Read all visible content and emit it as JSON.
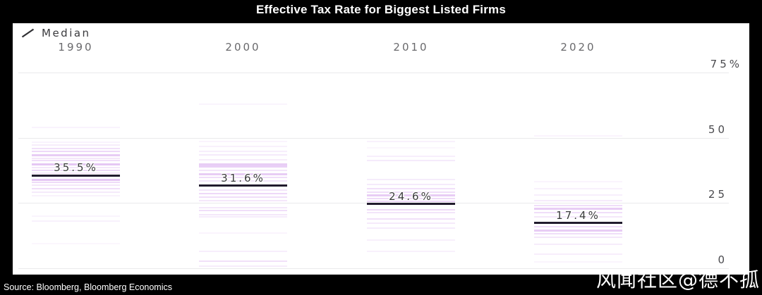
{
  "title": "Effective Tax Rate for Biggest Listed Firms",
  "source": "Source: Bloomberg, Bloomberg Economics",
  "watermark": "风闻社区@德不孤",
  "legend": {
    "label": "Median",
    "marker": "diagonal-line"
  },
  "colors": {
    "frame_background": "#000000",
    "panel_background": "#ffffff",
    "strip_line": "#c989e8",
    "median_line": "#211b2d",
    "gridline": "#eaeaec",
    "title_text": "#ffffff",
    "year_label": "#69696c",
    "tick_label": "#4a4a4e",
    "median_label": "#3a3a3c",
    "source_text": "#ffffff",
    "watermark_text": "#ffffff"
  },
  "chart_data": {
    "type": "strip-distribution",
    "title": "Effective Tax Rate for Biggest Listed Firms",
    "unit": "percent",
    "legend_position": "top-left",
    "y_axis": {
      "side": "right",
      "range": [
        0,
        77
      ],
      "ticks": [
        {
          "value": 75,
          "label": "75%"
        },
        {
          "value": 50,
          "label": "50"
        },
        {
          "value": 25,
          "label": "25"
        },
        {
          "value": 0,
          "label": "0"
        }
      ]
    },
    "groups": [
      {
        "year": "1990",
        "median": 35.5,
        "median_label": "35.5%",
        "points": [
          {
            "v": 54.0,
            "w": 0.1
          },
          {
            "v": 48.4,
            "w": 0.1
          },
          {
            "v": 47.3,
            "w": 0.16
          },
          {
            "v": 46.0,
            "w": 0.26
          },
          {
            "v": 44.7,
            "w": 0.32
          },
          {
            "v": 43.4,
            "w": 0.42
          },
          {
            "v": 42.2,
            "w": 0.2
          },
          {
            "v": 41.2,
            "w": 0.28
          },
          {
            "v": 39.9,
            "w": 0.48
          },
          {
            "v": 38.7,
            "w": 0.2
          },
          {
            "v": 37.4,
            "w": 0.33
          },
          {
            "v": 36.5,
            "w": 0.22
          },
          {
            "v": 34.0,
            "w": 0.48
          },
          {
            "v": 32.8,
            "w": 0.3
          },
          {
            "v": 31.9,
            "w": 0.2
          },
          {
            "v": 30.5,
            "w": 0.28
          },
          {
            "v": 29.2,
            "w": 0.18
          },
          {
            "v": 27.9,
            "w": 0.11
          },
          {
            "v": 20.1,
            "w": 0.09
          },
          {
            "v": 18.0,
            "w": 0.12
          },
          {
            "v": 9.5,
            "w": 0.08
          }
        ]
      },
      {
        "year": "2000",
        "median": 31.6,
        "median_label": "31.6%",
        "points": [
          {
            "v": 62.8,
            "w": 0.09
          },
          {
            "v": 48.5,
            "w": 0.09
          },
          {
            "v": 46.6,
            "w": 0.12
          },
          {
            "v": 44.8,
            "w": 0.14
          },
          {
            "v": 43.4,
            "w": 0.18
          },
          {
            "v": 41.5,
            "w": 0.16
          },
          {
            "v": 39.9,
            "w": 0.42
          },
          {
            "v": 38.9,
            "w": 0.4
          },
          {
            "v": 37.5,
            "w": 0.22
          },
          {
            "v": 35.9,
            "w": 0.42
          },
          {
            "v": 34.8,
            "w": 0.28
          },
          {
            "v": 33.5,
            "w": 0.22
          },
          {
            "v": 30.0,
            "w": 0.22
          },
          {
            "v": 28.7,
            "w": 0.32
          },
          {
            "v": 27.3,
            "w": 0.28
          },
          {
            "v": 26.0,
            "w": 0.2
          },
          {
            "v": 23.3,
            "w": 0.2
          },
          {
            "v": 22.0,
            "w": 0.28
          },
          {
            "v": 20.6,
            "w": 0.2
          },
          {
            "v": 19.8,
            "w": 0.16
          },
          {
            "v": 13.4,
            "w": 0.09
          },
          {
            "v": 6.4,
            "w": 0.14
          },
          {
            "v": 2.7,
            "w": 0.26
          },
          {
            "v": 0.8,
            "w": 0.16
          }
        ]
      },
      {
        "year": "2010",
        "median": 24.6,
        "median_label": "24.6%",
        "points": [
          {
            "v": 48.6,
            "w": 0.12
          },
          {
            "v": 46.1,
            "w": 0.08
          },
          {
            "v": 42.9,
            "w": 0.14
          },
          {
            "v": 41.3,
            "w": 0.18
          },
          {
            "v": 34.0,
            "w": 0.16
          },
          {
            "v": 32.2,
            "w": 0.18
          },
          {
            "v": 30.5,
            "w": 0.26
          },
          {
            "v": 29.2,
            "w": 0.28
          },
          {
            "v": 27.9,
            "w": 0.42
          },
          {
            "v": 26.8,
            "w": 0.3
          },
          {
            "v": 25.7,
            "w": 0.36
          },
          {
            "v": 22.5,
            "w": 0.3
          },
          {
            "v": 21.2,
            "w": 0.22
          },
          {
            "v": 18.8,
            "w": 0.26
          },
          {
            "v": 17.2,
            "w": 0.18
          },
          {
            "v": 15.3,
            "w": 0.16
          },
          {
            "v": 10.7,
            "w": 0.13
          },
          {
            "v": 6.4,
            "w": 0.12
          }
        ]
      },
      {
        "year": "2020",
        "median": 17.4,
        "median_label": "17.4%",
        "points": [
          {
            "v": 50.7,
            "w": 0.09
          },
          {
            "v": 33.2,
            "w": 0.09
          },
          {
            "v": 30.5,
            "w": 0.12
          },
          {
            "v": 28.1,
            "w": 0.14
          },
          {
            "v": 26.0,
            "w": 0.18
          },
          {
            "v": 24.1,
            "w": 0.28
          },
          {
            "v": 22.8,
            "w": 0.42
          },
          {
            "v": 21.4,
            "w": 0.28
          },
          {
            "v": 19.8,
            "w": 0.2
          },
          {
            "v": 15.8,
            "w": 0.28
          },
          {
            "v": 14.5,
            "w": 0.42
          },
          {
            "v": 13.1,
            "w": 0.28
          },
          {
            "v": 11.8,
            "w": 0.2
          },
          {
            "v": 9.1,
            "w": 0.16
          },
          {
            "v": 5.4,
            "w": 0.14
          },
          {
            "v": 2.4,
            "w": 0.09
          }
        ]
      }
    ]
  }
}
